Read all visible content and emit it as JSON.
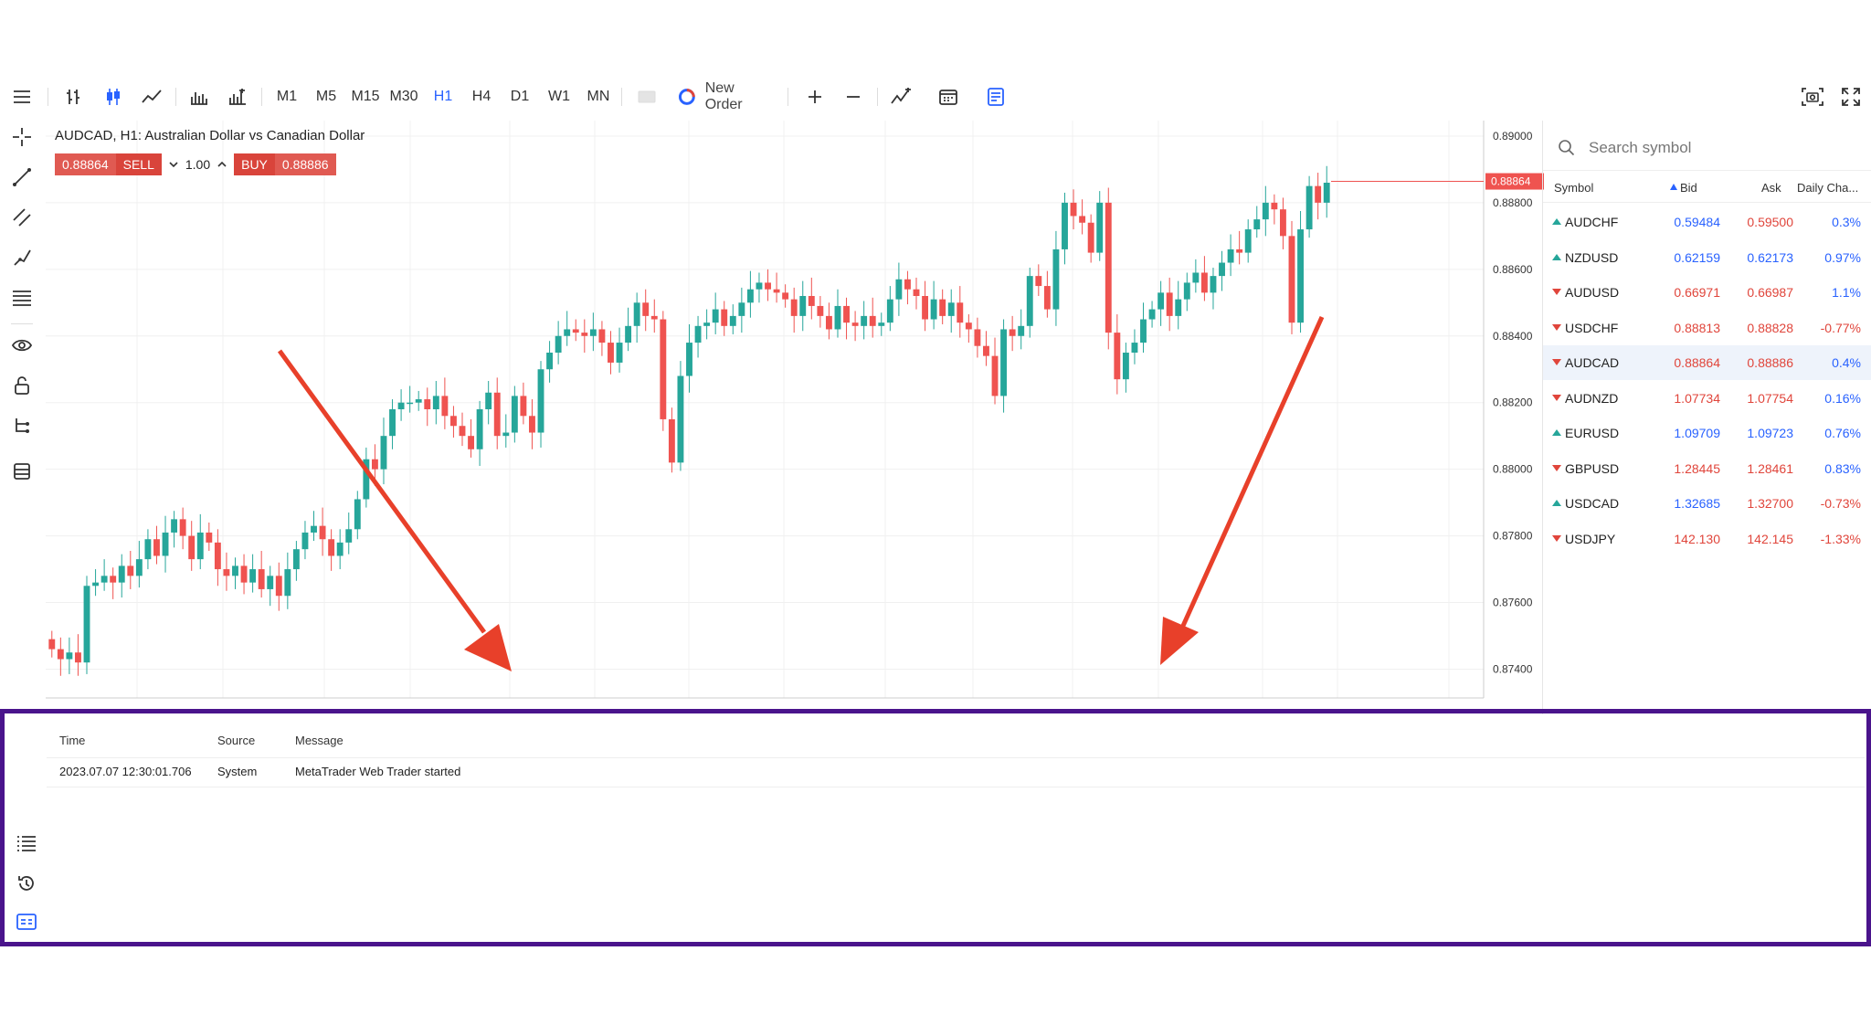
{
  "toolbar": {
    "timeframes": [
      "M1",
      "M5",
      "M15",
      "M30",
      "H1",
      "H4",
      "D1",
      "W1",
      "MN"
    ],
    "active_timeframe": "H1",
    "new_order_label": "New Order"
  },
  "chart": {
    "title": "AUDCAD, H1: Australian Dollar vs Canadian Dollar",
    "bid": "0.88864",
    "sell_label": "SELL",
    "lot": "1.00",
    "buy_label": "BUY",
    "ask": "0.88886",
    "price_tag": "0.88864",
    "up_color": "#26a69a",
    "down_color": "#ef5350"
  },
  "chart_data": {
    "type": "candlestick",
    "title": "AUDCAD, H1: Australian Dollar vs Canadian Dollar",
    "y_ticks": [
      "0.89000",
      "0.88800",
      "0.88600",
      "0.88400",
      "0.88200",
      "0.88000",
      "0.87800",
      "0.87600",
      "0.87400"
    ],
    "ylim": [
      0.8733,
      0.8903
    ],
    "last_price": 0.88864,
    "series_close": [
      0.8746,
      0.8743,
      0.8745,
      0.8742,
      0.8765,
      0.8766,
      0.8768,
      0.8766,
      0.8771,
      0.8768,
      0.8773,
      0.8779,
      0.8774,
      0.8781,
      0.8785,
      0.878,
      0.8773,
      0.8781,
      0.8778,
      0.877,
      0.8768,
      0.8771,
      0.8766,
      0.877,
      0.8764,
      0.8768,
      0.8762,
      0.877,
      0.8776,
      0.8781,
      0.8783,
      0.8779,
      0.8774,
      0.8778,
      0.8782,
      0.8791,
      0.8803,
      0.88,
      0.881,
      0.8818,
      0.882,
      0.882,
      0.8821,
      0.8818,
      0.8822,
      0.8816,
      0.8813,
      0.881,
      0.8806,
      0.8818,
      0.8823,
      0.881,
      0.8811,
      0.8822,
      0.8816,
      0.8811,
      0.883,
      0.8835,
      0.884,
      0.8842,
      0.8841,
      0.884,
      0.8842,
      0.8838,
      0.8832,
      0.8838,
      0.8843,
      0.885,
      0.8846,
      0.8845,
      0.8815,
      0.8802,
      0.8828,
      0.8838,
      0.8843,
      0.8844,
      0.8848,
      0.8843,
      0.8846,
      0.885,
      0.8854,
      0.8856,
      0.8854,
      0.8853,
      0.8851,
      0.8846,
      0.8852,
      0.8849,
      0.8846,
      0.8842,
      0.8849,
      0.8844,
      0.8843,
      0.8846,
      0.8843,
      0.8844,
      0.8851,
      0.8857,
      0.8854,
      0.8852,
      0.8845,
      0.8851,
      0.8846,
      0.885,
      0.8844,
      0.8842,
      0.8837,
      0.8834,
      0.8822,
      0.8842,
      0.884,
      0.8843,
      0.8858,
      0.8855,
      0.8848,
      0.8866,
      0.888,
      0.8876,
      0.8874,
      0.8865,
      0.888,
      0.8841,
      0.8827,
      0.8835,
      0.8838,
      0.8845,
      0.8848,
      0.8853,
      0.8846,
      0.8851,
      0.8856,
      0.8859,
      0.8853,
      0.8858,
      0.8862,
      0.8866,
      0.8865,
      0.8872,
      0.8875,
      0.888,
      0.8878,
      0.887,
      0.8844,
      0.8872,
      0.8885,
      0.888,
      0.8886
    ]
  },
  "watch": {
    "search_placeholder": "Search symbol",
    "headers": {
      "symbol": "Symbol",
      "bid": "Bid",
      "ask": "Ask",
      "daily": "Daily Cha..."
    },
    "rows": [
      {
        "symbol": "AUDCHF",
        "bid": "0.59484",
        "ask": "0.59500",
        "change": "0.3%",
        "dir": "up",
        "bid_color": "#2962ff",
        "ask_color": "#e0453b",
        "chg_color": "#2962ff"
      },
      {
        "symbol": "NZDUSD",
        "bid": "0.62159",
        "ask": "0.62173",
        "change": "0.97%",
        "dir": "up",
        "bid_color": "#2962ff",
        "ask_color": "#2962ff",
        "chg_color": "#2962ff"
      },
      {
        "symbol": "AUDUSD",
        "bid": "0.66971",
        "ask": "0.66987",
        "change": "1.1%",
        "dir": "down",
        "bid_color": "#e0453b",
        "ask_color": "#e0453b",
        "chg_color": "#2962ff"
      },
      {
        "symbol": "USDCHF",
        "bid": "0.88813",
        "ask": "0.88828",
        "change": "-0.77%",
        "dir": "down",
        "bid_color": "#e0453b",
        "ask_color": "#e0453b",
        "chg_color": "#e0453b"
      },
      {
        "symbol": "AUDCAD",
        "bid": "0.88864",
        "ask": "0.88886",
        "change": "0.4%",
        "dir": "down",
        "bid_color": "#e0453b",
        "ask_color": "#e0453b",
        "chg_color": "#2962ff"
      },
      {
        "symbol": "AUDNZD",
        "bid": "1.07734",
        "ask": "1.07754",
        "change": "0.16%",
        "dir": "down",
        "bid_color": "#e0453b",
        "ask_color": "#e0453b",
        "chg_color": "#2962ff"
      },
      {
        "symbol": "EURUSD",
        "bid": "1.09709",
        "ask": "1.09723",
        "change": "0.76%",
        "dir": "up",
        "bid_color": "#2962ff",
        "ask_color": "#2962ff",
        "chg_color": "#2962ff"
      },
      {
        "symbol": "GBPUSD",
        "bid": "1.28445",
        "ask": "1.28461",
        "change": "0.83%",
        "dir": "down",
        "bid_color": "#e0453b",
        "ask_color": "#e0453b",
        "chg_color": "#2962ff"
      },
      {
        "symbol": "USDCAD",
        "bid": "1.32685",
        "ask": "1.32700",
        "change": "-0.73%",
        "dir": "up",
        "bid_color": "#2962ff",
        "ask_color": "#e0453b",
        "chg_color": "#e0453b"
      },
      {
        "symbol": "USDJPY",
        "bid": "142.130",
        "ask": "142.145",
        "change": "-1.33%",
        "dir": "down",
        "bid_color": "#e0453b",
        "ask_color": "#e0453b",
        "chg_color": "#e0453b"
      }
    ]
  },
  "journal": {
    "headers": {
      "time": "Time",
      "source": "Source",
      "message": "Message"
    },
    "entry": {
      "time": "2023.07.07 12:30:01.706",
      "source": "System",
      "message": "MetaTrader Web Trader started"
    }
  },
  "colors": {
    "annotation_arrow": "#e8402a",
    "highlight_border": "#4a148c",
    "accent": "#2962ff"
  }
}
